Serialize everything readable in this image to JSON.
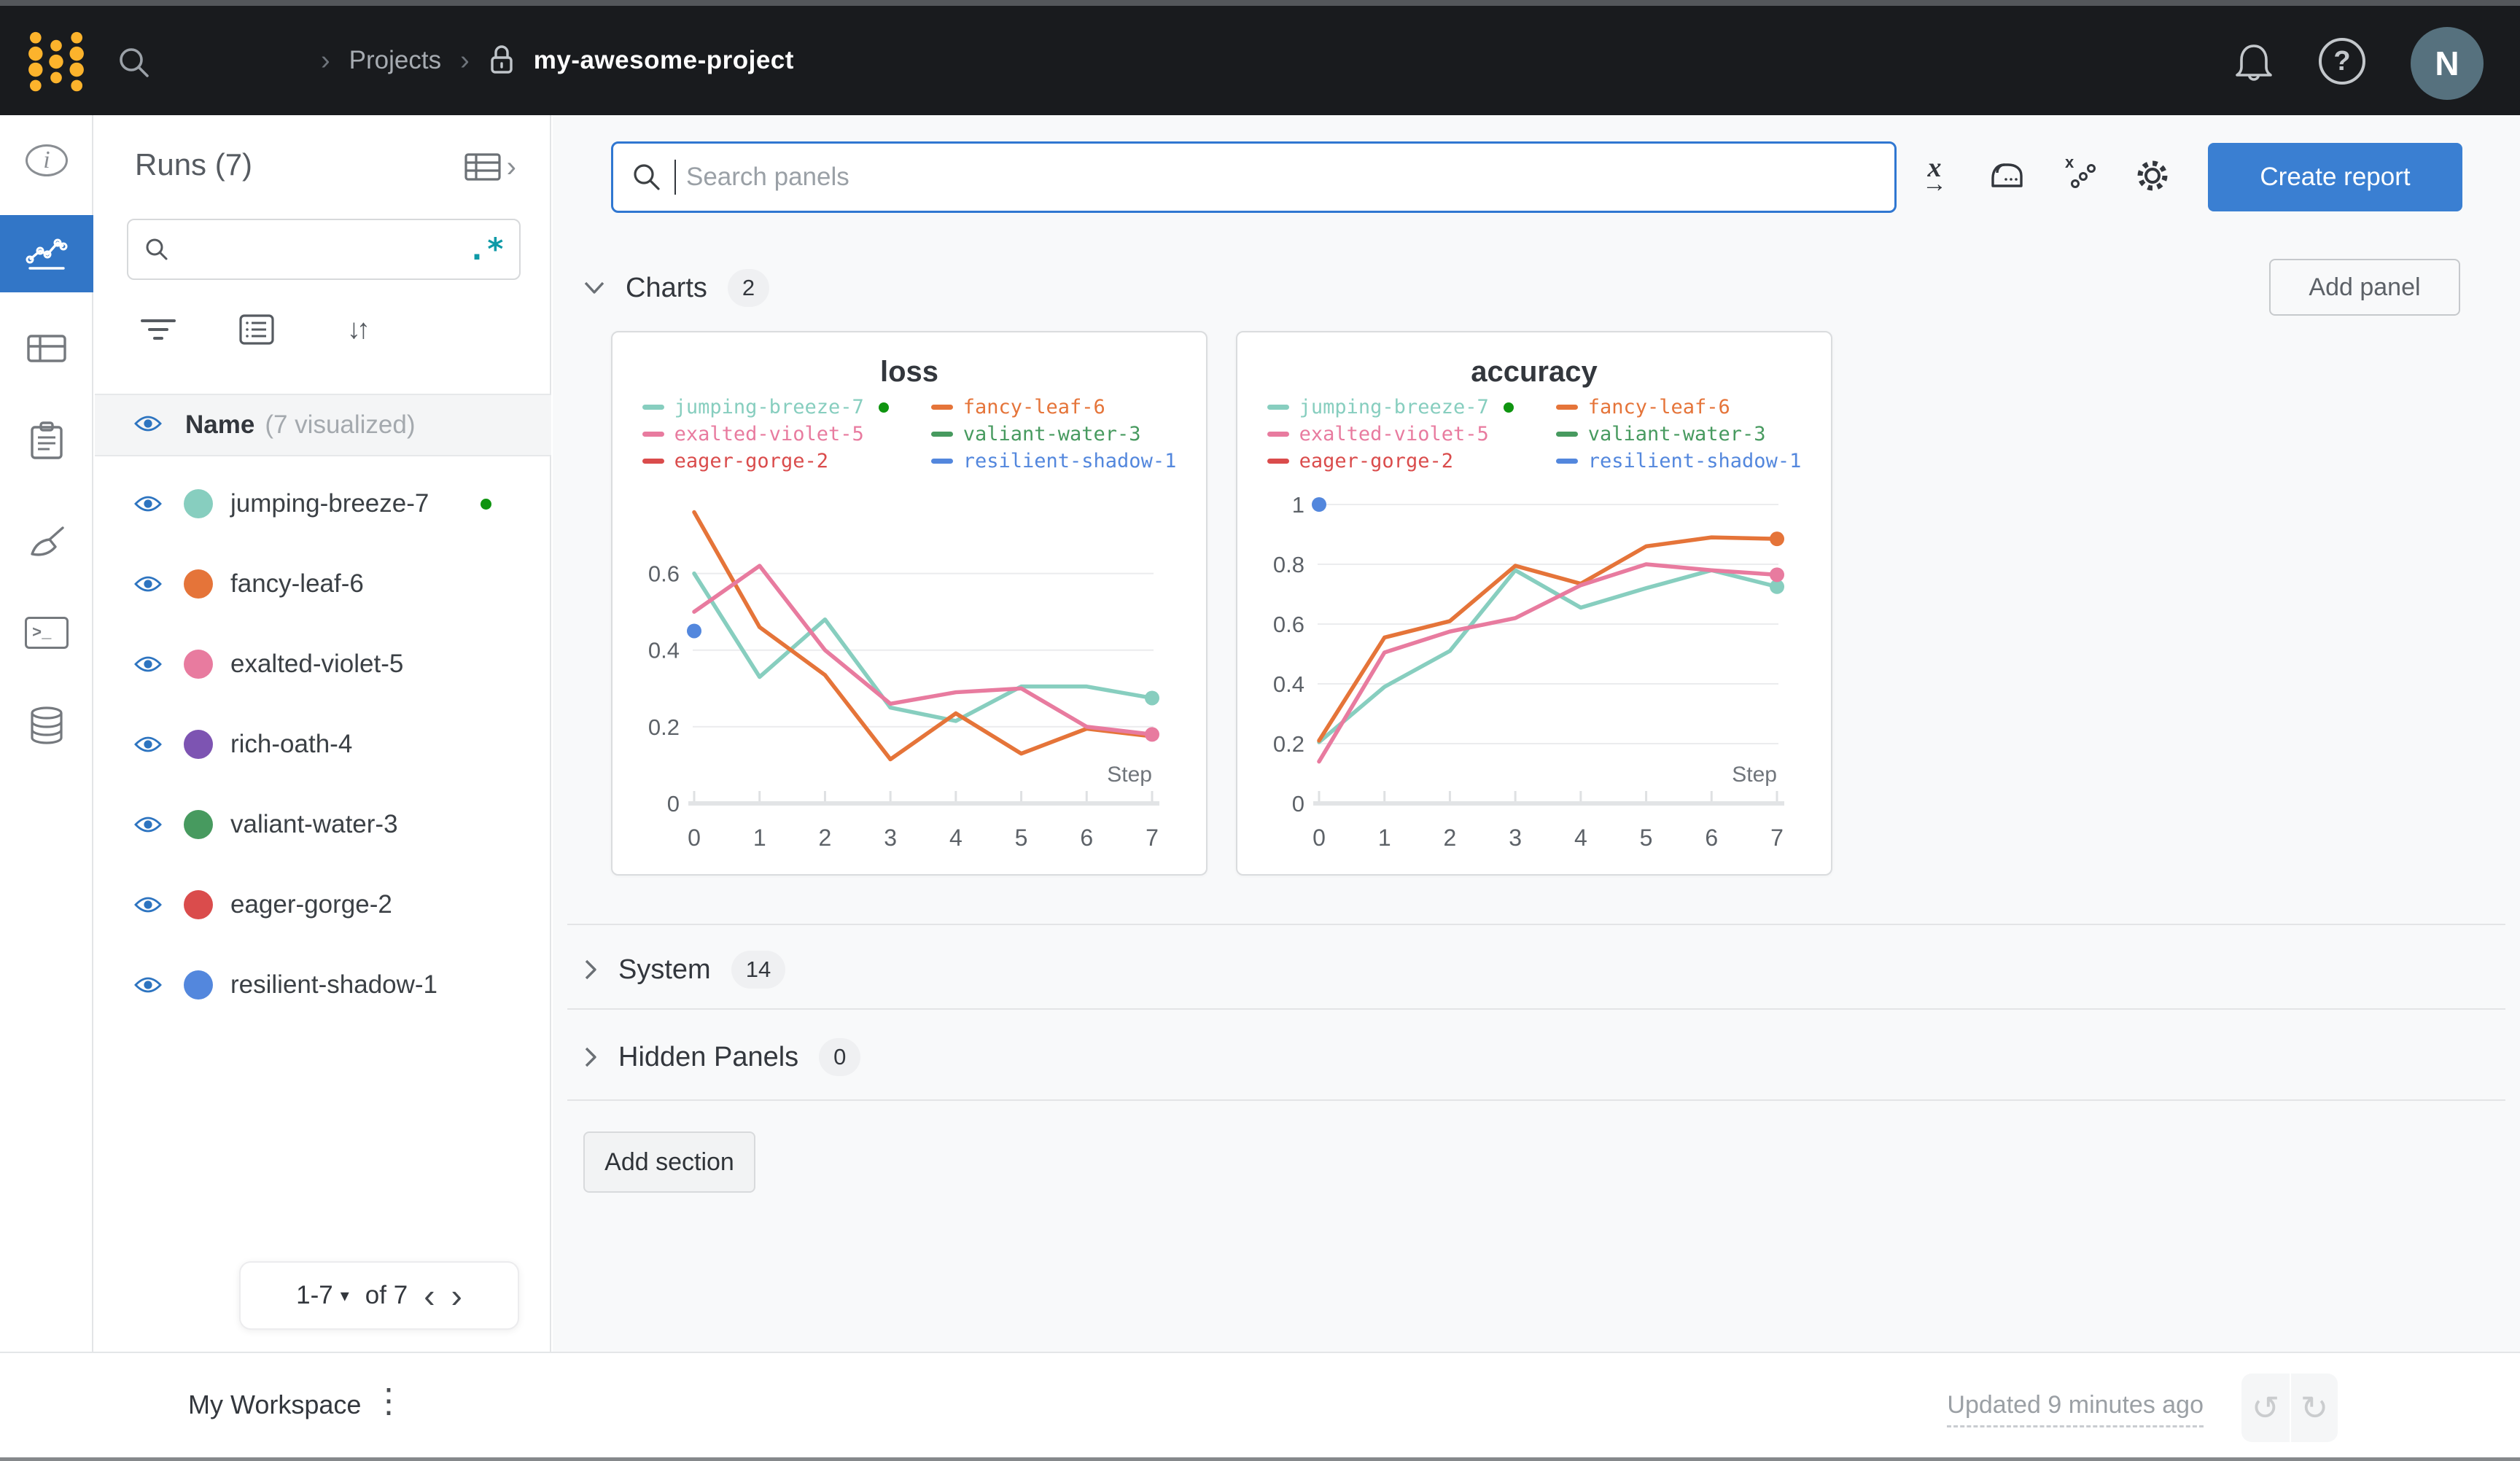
{
  "topbar": {
    "breadcrumb_sep": "›",
    "projects_label": "Projects",
    "project_name": "my-awesome-project",
    "help_icon": "?",
    "avatar_initial": "N"
  },
  "left_rail": {
    "info_glyph": "i",
    "terminal_glyph": ">_",
    "active_item": "panels"
  },
  "runs_sidebar": {
    "title": "Runs (7)",
    "expand_icon": "›",
    "search_value": "",
    "regex_icon": ".*",
    "sort_icon": "↓↑",
    "header": {
      "name": "Name",
      "visualized": "(7 visualized)"
    },
    "status_color": "#0f9410",
    "runs": [
      {
        "name": "jumping-breeze-7",
        "color": "#87CEBF",
        "running": true
      },
      {
        "name": "fancy-leaf-6",
        "color": "#E57439",
        "running": false
      },
      {
        "name": "exalted-violet-5",
        "color": "#E87B9F",
        "running": false
      },
      {
        "name": "rich-oath-4",
        "color": "#7D54B2",
        "running": false
      },
      {
        "name": "valiant-water-3",
        "color": "#479A5F",
        "running": false
      },
      {
        "name": "eager-gorge-2",
        "color": "#DA4C4C",
        "running": false
      },
      {
        "name": "resilient-shadow-1",
        "color": "#5387DD",
        "running": false
      }
    ],
    "pagination": {
      "range": "1-7",
      "caret": "▾",
      "of": "of 7",
      "prev": "‹",
      "next": "›"
    }
  },
  "main": {
    "search_placeholder": "Search panels",
    "create_report_label": "Create report",
    "add_panel_label": "Add panel",
    "add_section_label": "Add section",
    "toolbar": {
      "x_axis_glyph": "x",
      "x_axis_arrow": "→"
    },
    "sections": [
      {
        "label": "Charts",
        "count": "2"
      },
      {
        "label": "System",
        "count": "14"
      },
      {
        "label": "Hidden Panels",
        "count": "0"
      }
    ]
  },
  "footer": {
    "workspace_label": "My Workspace",
    "kebab_icon": "⋮",
    "updated_label": "Updated 9 minutes ago",
    "undo_icon": "↺",
    "redo_icon": "↻"
  },
  "chart_data": [
    {
      "type": "line",
      "title": "loss",
      "xlabel": "Step",
      "x": [
        0,
        1,
        2,
        3,
        4,
        5,
        6,
        7
      ],
      "ymax": 0.78,
      "yticks": [
        0,
        0.2,
        0.4,
        0.6
      ],
      "grid": true,
      "legend_position": "top",
      "series": [
        {
          "name": "jumping-breeze-7",
          "color": "#87CEBF",
          "values": [
            0.6,
            0.33,
            0.48,
            0.25,
            0.215,
            0.305,
            0.305,
            0.275
          ],
          "end_marker": true,
          "running_dot": true
        },
        {
          "name": "fancy-leaf-6",
          "color": "#E57439",
          "values": [
            0.76,
            0.46,
            0.335,
            0.115,
            0.235,
            0.13,
            0.195,
            0.175
          ],
          "end_marker": false
        },
        {
          "name": "exalted-violet-5",
          "color": "#E87B9F",
          "values": [
            0.5,
            0.62,
            0.4,
            0.26,
            0.29,
            0.3,
            0.2,
            0.18
          ],
          "end_marker": true
        },
        {
          "name": "valiant-water-3",
          "color": "#479A5F",
          "values": null
        },
        {
          "name": "eager-gorge-2",
          "color": "#DA4C4C",
          "values": null
        },
        {
          "name": "resilient-shadow-1",
          "color": "#5387DD",
          "values": null,
          "point": [
            0,
            0.45
          ]
        }
      ]
    },
    {
      "type": "line",
      "title": "accuracy",
      "xlabel": "Step",
      "x": [
        0,
        1,
        2,
        3,
        4,
        5,
        6,
        7
      ],
      "ymax": 1.0,
      "yticks": [
        0,
        0.2,
        0.4,
        0.6,
        0.8,
        1
      ],
      "grid": true,
      "legend_position": "top",
      "series": [
        {
          "name": "jumping-breeze-7",
          "color": "#87CEBF",
          "values": [
            0.205,
            0.39,
            0.51,
            0.78,
            0.655,
            0.72,
            0.78,
            0.725
          ],
          "end_marker": true,
          "running_dot": true
        },
        {
          "name": "fancy-leaf-6",
          "color": "#E57439",
          "values": [
            0.21,
            0.555,
            0.61,
            0.795,
            0.735,
            0.86,
            0.89,
            0.885
          ],
          "end_marker": true
        },
        {
          "name": "exalted-violet-5",
          "color": "#E87B9F",
          "values": [
            0.14,
            0.505,
            0.575,
            0.62,
            0.73,
            0.8,
            0.78,
            0.765
          ],
          "end_marker": true
        },
        {
          "name": "valiant-water-3",
          "color": "#479A5F",
          "values": null
        },
        {
          "name": "eager-gorge-2",
          "color": "#DA4C4C",
          "values": null
        },
        {
          "name": "resilient-shadow-1",
          "color": "#5387DD",
          "values": null,
          "point": [
            0,
            1.0
          ]
        }
      ]
    }
  ]
}
